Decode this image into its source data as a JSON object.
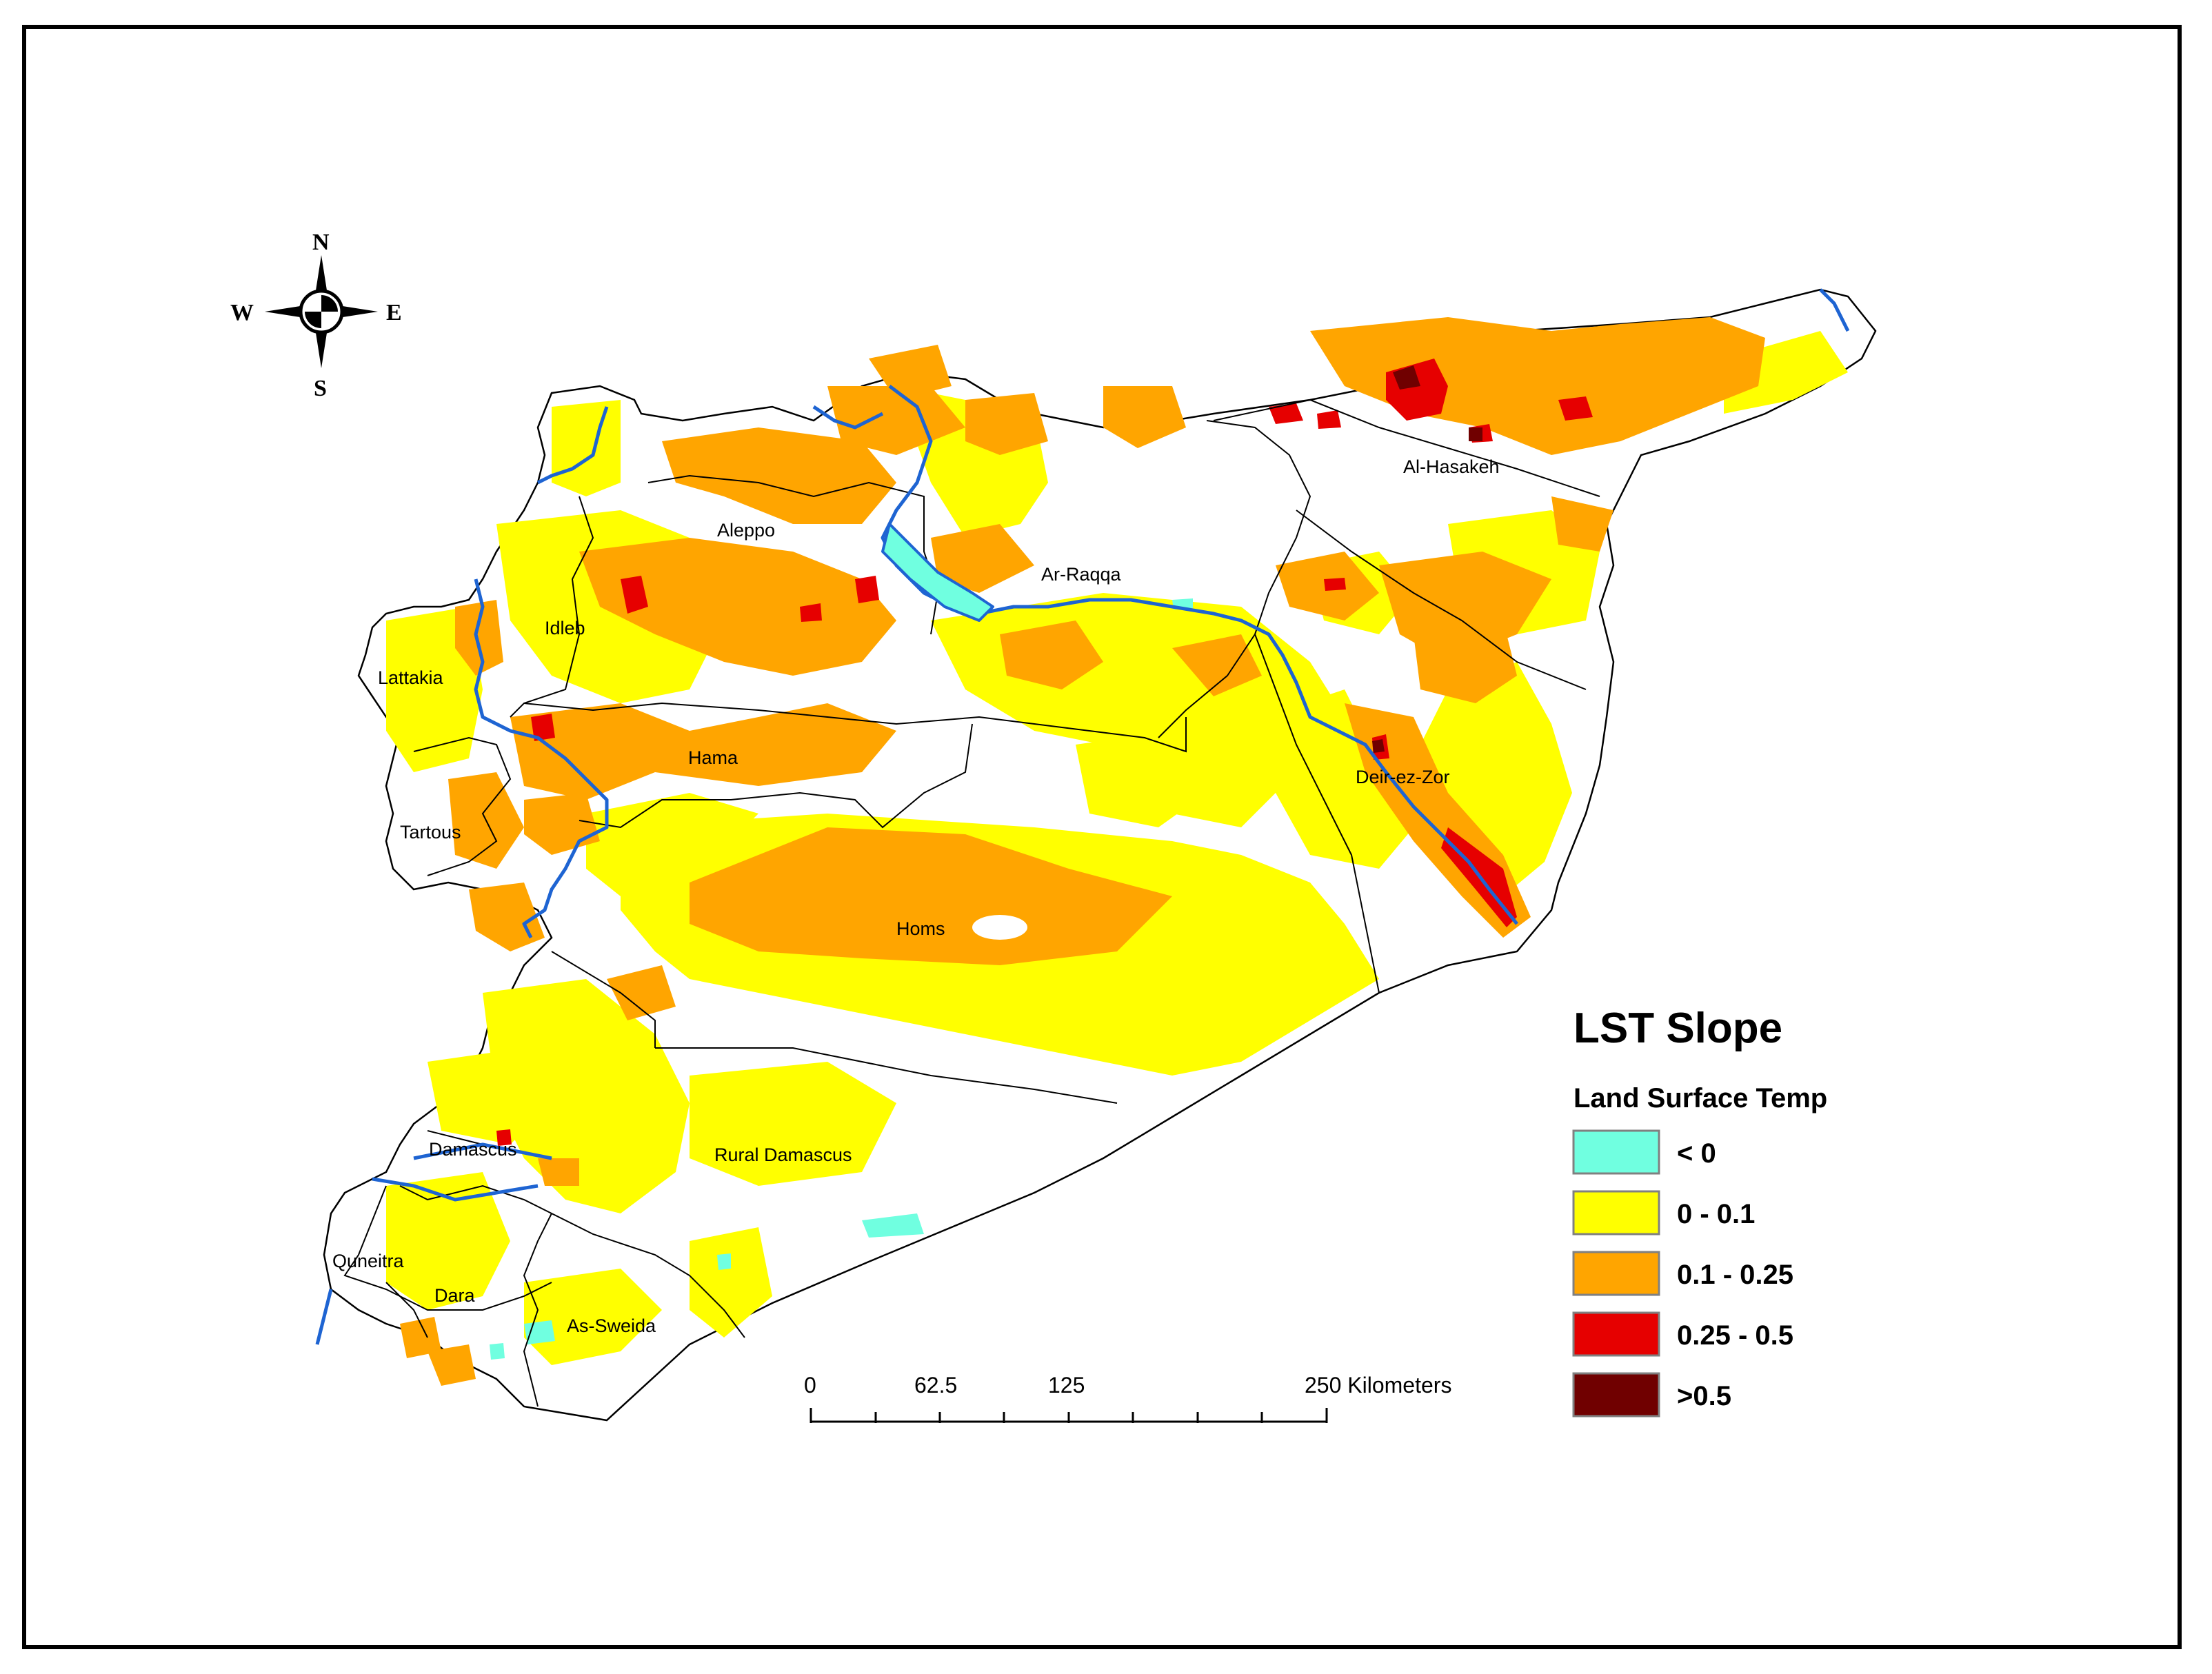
{
  "compass": {
    "north": "N",
    "south": "S",
    "east": "E",
    "west": "W"
  },
  "regions": [
    {
      "id": "al-hasakeh",
      "label": "Al-Hasakeh"
    },
    {
      "id": "aleppo",
      "label": "Aleppo"
    },
    {
      "id": "ar-raqqa",
      "label": "Ar-Raqqa"
    },
    {
      "id": "idleb",
      "label": "Idleb"
    },
    {
      "id": "lattakia",
      "label": "Lattakia"
    },
    {
      "id": "hama",
      "label": "Hama"
    },
    {
      "id": "deir-ez-zor",
      "label": "Deir-ez-Zor"
    },
    {
      "id": "tartous",
      "label": "Tartous"
    },
    {
      "id": "homs",
      "label": "Homs"
    },
    {
      "id": "damascus",
      "label": "Damascus"
    },
    {
      "id": "rural-damascus",
      "label": "Rural Damascus"
    },
    {
      "id": "quneitra",
      "label": "Quneitra"
    },
    {
      "id": "dara",
      "label": "Dara"
    },
    {
      "id": "as-sweida",
      "label": "As-Sweida"
    }
  ],
  "legend": {
    "title": "LST Slope",
    "subtitle": "Land Surface Temp",
    "items": [
      {
        "label": "< 0",
        "color": "#70FFE0"
      },
      {
        "label": "0 - 0.1",
        "color": "#FFFF00"
      },
      {
        "label": "0.1 - 0.25",
        "color": "#FFA500"
      },
      {
        "label": "0.25 - 0.5",
        "color": "#E60000"
      },
      {
        "label": ">0.5",
        "color": "#700000"
      }
    ]
  },
  "scale_bar": {
    "labels": [
      "0",
      "62.5",
      "125",
      "250 Kilometers"
    ]
  },
  "colors": {
    "river": "#1E64D2",
    "boundary": "#000000",
    "frame": "#000000"
  }
}
